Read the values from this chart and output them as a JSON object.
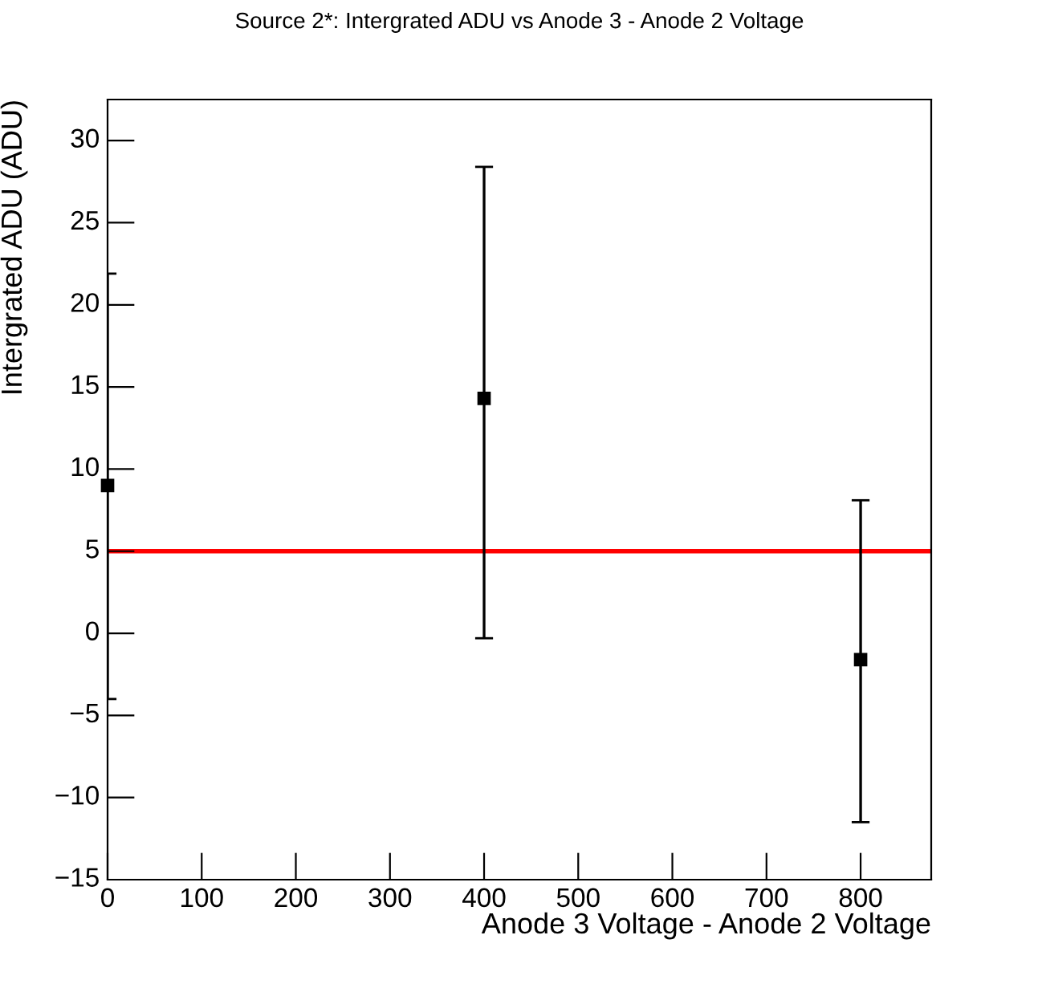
{
  "chart_data": {
    "type": "scatter",
    "title": "Source 2*: Intergrated ADU vs Anode 3 - Anode 2 Voltage",
    "xlabel": "Anode 3 Voltage - Anode 2 Voltage",
    "ylabel": "Intergrated ADU (ADU)",
    "x": [
      0,
      400,
      800
    ],
    "series": [
      {
        "color": "#000000",
        "values": [
          9.0,
          14.3,
          -1.6
        ],
        "errors": [
          [
            -4.0,
            21.9
          ],
          [
            -0.3,
            28.4
          ],
          [
            -11.5,
            8.1
          ]
        ]
      }
    ],
    "xlim": [
      0,
      875
    ],
    "xticks": [
      0,
      100,
      200,
      300,
      400,
      500,
      600,
      700,
      800
    ],
    "ylim": [
      -15,
      32.5
    ],
    "yticks": [
      -15,
      -10,
      -5,
      0,
      5,
      10,
      15,
      20,
      25,
      30
    ],
    "ref_lines": [
      {
        "axis": "y",
        "value": 5,
        "color": "#ff0000"
      }
    ],
    "marker": "square",
    "grid": false,
    "legend": false
  }
}
